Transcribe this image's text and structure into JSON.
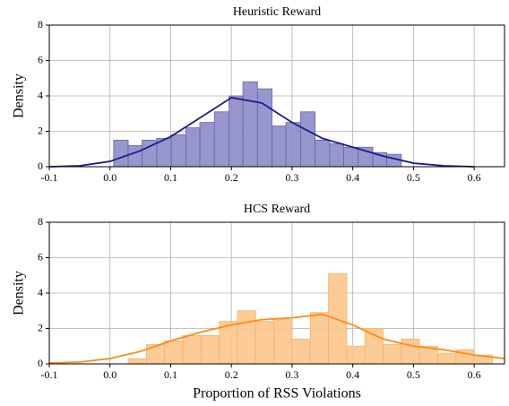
{
  "chart_data": [
    {
      "type": "histogram",
      "title": "Heuristic Reward",
      "ylabel": "Density",
      "bins": [
        0.006,
        0.03,
        0.053,
        0.077,
        0.101,
        0.125,
        0.148,
        0.172,
        0.196,
        0.219,
        0.243,
        0.267,
        0.29,
        0.314,
        0.338,
        0.362,
        0.385,
        0.409,
        0.433,
        0.456,
        0.48
      ],
      "values": [
        1.5,
        1.2,
        1.5,
        1.6,
        1.8,
        2.2,
        2.5,
        3.1,
        4.0,
        4.8,
        4.4,
        2.3,
        2.5,
        3.1,
        1.5,
        1.3,
        1.1,
        1.1,
        0.8,
        0.7
      ],
      "color": "#8c8cc8",
      "edgecolor": "#6464b4",
      "kde": {
        "x": [
          -0.1,
          -0.05,
          0,
          0.05,
          0.1,
          0.15,
          0.2,
          0.25,
          0.3,
          0.35,
          0.4,
          0.45,
          0.5,
          0.55,
          0.6
        ],
        "values": [
          0.0,
          0.05,
          0.3,
          0.9,
          1.7,
          2.8,
          3.9,
          3.6,
          2.5,
          1.6,
          1.1,
          0.6,
          0.2,
          0.05,
          0.0
        ],
        "color": "#1c1c8c"
      },
      "xlim": [
        -0.1,
        0.65
      ],
      "xticks": [
        -0.1,
        {
          "value": 0,
          "label": "0.0"
        },
        0.1,
        0.2,
        0.3,
        0.4,
        0.5,
        0.6
      ],
      "ylim": [
        0,
        8
      ],
      "yticks": [
        0,
        2,
        4,
        6,
        8
      ],
      "grid": true
    },
    {
      "type": "histogram",
      "title": "HCS Reward",
      "ylabel": "Density",
      "xlabel": "Proportion of RSS Violations",
      "bins": [
        0.03,
        0.06,
        0.09,
        0.12,
        0.15,
        0.18,
        0.21,
        0.24,
        0.27,
        0.3,
        0.33,
        0.36,
        0.39,
        0.42,
        0.45,
        0.48,
        0.51,
        0.54,
        0.57,
        0.6,
        0.63
      ],
      "values": [
        0.3,
        1.1,
        1.3,
        1.6,
        1.6,
        2.4,
        3.0,
        2.4,
        2.5,
        1.4,
        2.9,
        5.1,
        1.0,
        2.0,
        1.1,
        1.4,
        1.0,
        0.6,
        0.8,
        0.5
      ],
      "color": "#fdc58a",
      "edgecolor": "#fbb26a",
      "kde": {
        "x": [
          -0.1,
          -0.05,
          0,
          0.05,
          0.1,
          0.15,
          0.2,
          0.25,
          0.3,
          0.35,
          0.4,
          0.45,
          0.5,
          0.55,
          0.6,
          0.65
        ],
        "values": [
          0.05,
          0.1,
          0.3,
          0.7,
          1.3,
          1.8,
          2.2,
          2.5,
          2.6,
          2.8,
          2.2,
          1.4,
          1.0,
          0.8,
          0.5,
          0.3
        ],
        "color": "#ff8c1a"
      },
      "xlim": [
        -0.1,
        0.65
      ],
      "xticks": [
        -0.1,
        {
          "value": 0,
          "label": "0.0"
        },
        0.1,
        0.2,
        0.3,
        0.4,
        0.5,
        0.6
      ],
      "ylim": [
        0,
        8
      ],
      "yticks": [
        0,
        2,
        4,
        6,
        8
      ],
      "grid": true
    }
  ]
}
